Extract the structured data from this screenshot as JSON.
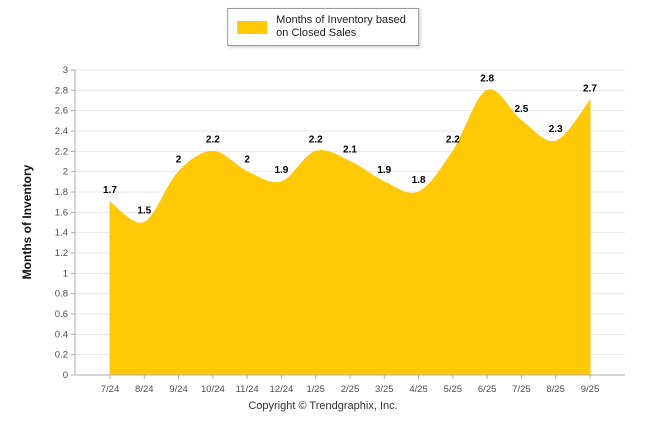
{
  "legend": {
    "lines": [
      "Months of Inventory based",
      "on Closed Sales"
    ]
  },
  "footer": {
    "copyright": "Copyright © Trendgraphix, Inc."
  },
  "chart_data": {
    "type": "area",
    "title": "",
    "xlabel": "",
    "ylabel": "Months of Inventory",
    "categories": [
      "7/24",
      "8/24",
      "9/24",
      "10/24",
      "11/24",
      "12/24",
      "1/25",
      "2/25",
      "3/25",
      "4/25",
      "5/25",
      "6/25",
      "7/25",
      "8/25",
      "9/25"
    ],
    "values": [
      1.7,
      1.5,
      2,
      2.2,
      2,
      1.9,
      2.2,
      2.1,
      1.9,
      1.8,
      2.2,
      2.8,
      2.5,
      2.3,
      2.7
    ],
    "ylim": [
      0,
      3
    ],
    "ytick_step": 0.2,
    "grid": true,
    "legend_position": "top-center",
    "legend_label": "Months of Inventory based on Closed Sales",
    "colors": {
      "area": "#FFC908",
      "grid": "#E7E7E7",
      "axis": "#ADADAD",
      "tick_text": "#4D4D4D",
      "label_text": "#000000"
    }
  }
}
